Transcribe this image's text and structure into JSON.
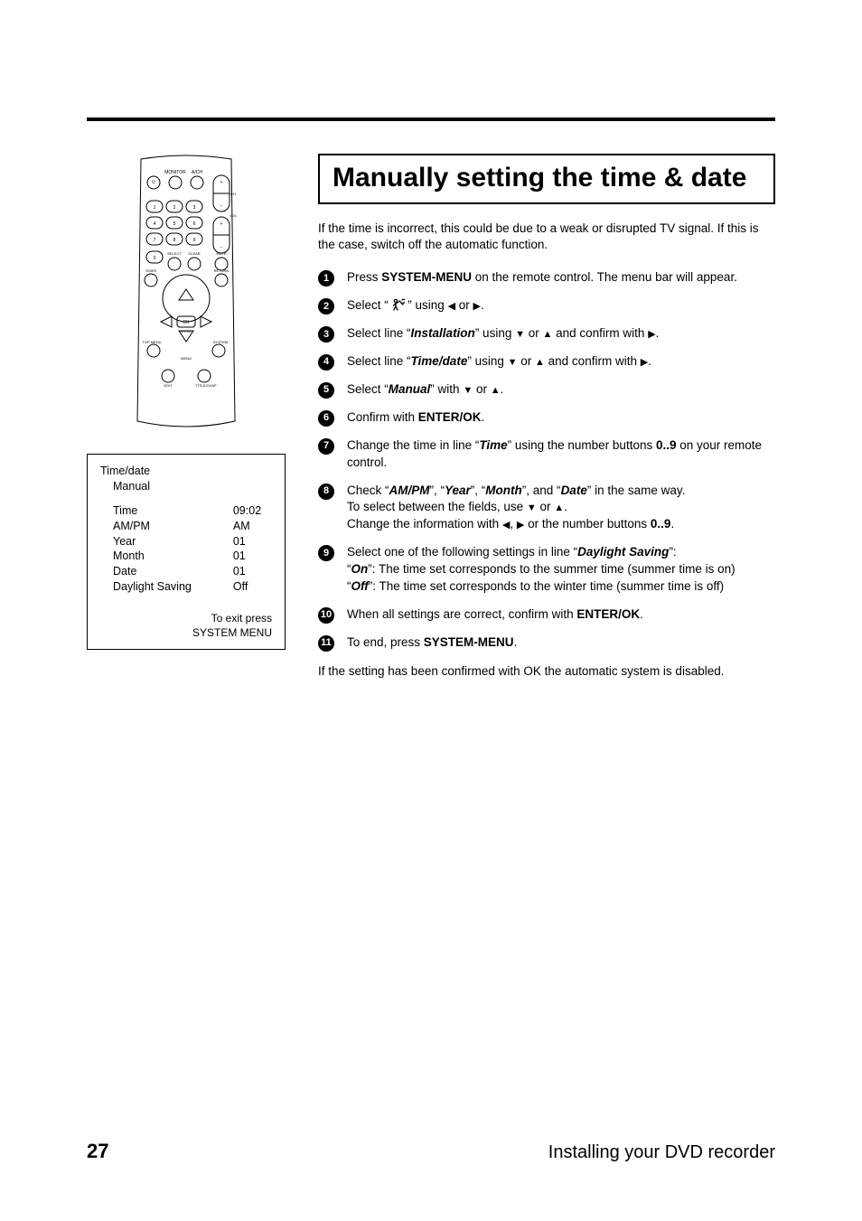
{
  "page": {
    "number": "27",
    "section": "Installing your DVD recorder"
  },
  "title": "Manually setting the time & date",
  "intro": "If the time is incorrect, this could be due to a weak or disrupted TV signal. If this is the case, switch off the automatic function.",
  "outro": "If the setting has been confirmed with OK the automatic system is disabled.",
  "arrows": {
    "left": "◀",
    "right": "▶",
    "up": "▲",
    "down": "▼"
  },
  "steps": [
    {
      "n": "1",
      "pre": "Press ",
      "b1": "SYSTEM-MENU",
      "post": " on the remote control. The menu bar will appear."
    },
    {
      "n": "2",
      "type": "select-icon"
    },
    {
      "n": "3",
      "type": "select-line",
      "label": "Installation",
      "dirs": "down-up-confirm-right"
    },
    {
      "n": "4",
      "type": "select-line",
      "label": "Time/date",
      "dirs": "down-up-confirm-right"
    },
    {
      "n": "5",
      "type": "select-with",
      "label": "Manual",
      "dirs": "down-up"
    },
    {
      "n": "6",
      "type": "confirm-enter-ok"
    },
    {
      "n": "7",
      "type": "change-time"
    },
    {
      "n": "8",
      "type": "check-fields"
    },
    {
      "n": "9",
      "type": "daylight"
    },
    {
      "n": "10",
      "type": "all-correct"
    },
    {
      "n": "11",
      "type": "to-end"
    }
  ],
  "strings": {
    "select": "Select “",
    "select_line": "Select line “",
    "using": "” using ",
    "with": "” with ",
    "or": " or ",
    "and_confirm_with": " and confirm with ",
    "confirm_with": "Confirm with ",
    "enter_ok": "ENTER/OK",
    "period": ".",
    "change_time_a": "Change the time in line “",
    "time": "Time",
    "change_time_b": "” using the number buttons ",
    "numrange": "0..9",
    "on_remote": " on your remote control.",
    "check_a": "Check “",
    "ampm": "AM/PM",
    "sep": "”, “",
    "year": "Year",
    "month": "Month",
    "and": "”, and “",
    "date": "Date",
    "same_way": "” in the same way.",
    "to_select_fields": "To select between the fields, use ",
    "change_info": "Change the information with ",
    "comma": ", ",
    "or_num": " or the number buttons ",
    "daylight_a": "Select one of the following settings in line “",
    "daylight_label": "Daylight Saving",
    "daylight_b": "”:",
    "on": "On",
    "on_desc": "”: The time set corresponds to the summer time (summer time is on)",
    "off": "Off",
    "off_desc": "”: The time set corresponds to the winter time (summer time is off)",
    "quote_open": "“",
    "all_correct": "When all settings are correct, confirm with ",
    "to_end": "To end, press ",
    "system_menu": "SYSTEM-MENU"
  },
  "osd": {
    "title": "Time/date",
    "mode": "Manual",
    "rows": [
      {
        "k": "Time",
        "v": "09:02"
      },
      {
        "k": "AM/PM",
        "v": "AM"
      },
      {
        "k": "Year",
        "v": "01"
      },
      {
        "k": "Month",
        "v": "01"
      },
      {
        "k": "Date",
        "v": "01"
      },
      {
        "k": "Daylight Saving",
        "v": "Off"
      }
    ],
    "exit1": "To exit press",
    "exit2": "SYSTEM MENU"
  },
  "remote": {
    "labels": {
      "monitor": "MONITOR",
      "avch": "A/CH",
      "ch": "CH",
      "vol": "VOL",
      "select": "SELECT",
      "clear": "CLEAR",
      "mute": "MUTE",
      "timer": "TIMER",
      "return": "RETURN",
      "ok": "OK",
      "enter": "ENTER",
      "topmenu": "TOP MENU",
      "system": "SYSTEM",
      "menu": "MENU",
      "edit": "EDIT",
      "titlechap": "TITLE/CHAP"
    }
  }
}
